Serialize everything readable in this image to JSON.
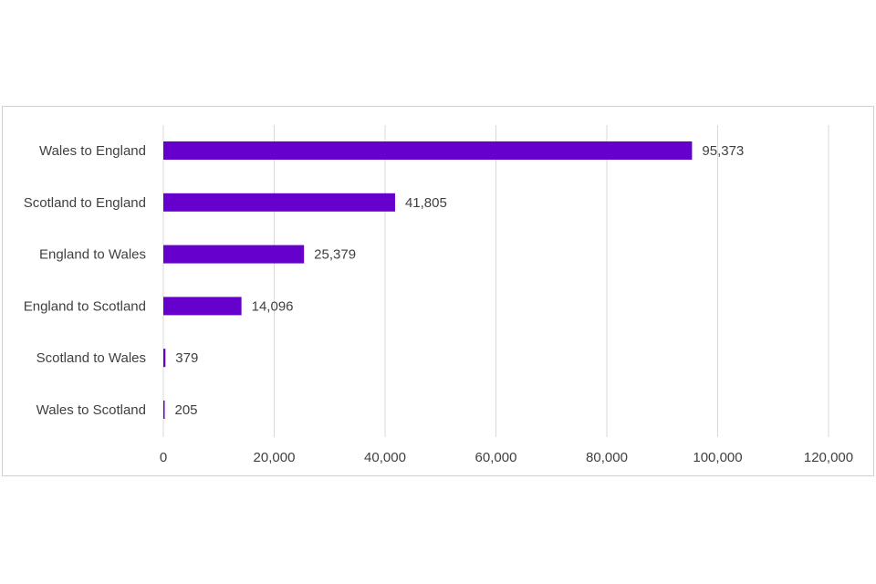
{
  "chart_data": {
    "type": "bar",
    "orientation": "horizontal",
    "title": "",
    "xlabel": "",
    "ylabel": "",
    "categories": [
      "Wales to England",
      "Scotland to England",
      "England to Wales",
      "England to Scotland",
      "Scotland to Wales",
      "Wales to Scotland"
    ],
    "values": [
      95373,
      41805,
      25379,
      14096,
      379,
      205
    ],
    "data_labels": [
      "95,373",
      "41,805",
      "25,379",
      "14,096",
      "379",
      "205"
    ],
    "xlim": [
      0,
      120000
    ],
    "xticks": [
      0,
      20000,
      40000,
      60000,
      80000,
      100000,
      120000
    ],
    "xtick_labels": [
      "0",
      "20,000",
      "40,000",
      "60,000",
      "80,000",
      "100,000",
      "120,000"
    ],
    "grid": true,
    "legend": "none",
    "bar_color": "#6600cc",
    "gridline_color": "#d9d9d9"
  }
}
